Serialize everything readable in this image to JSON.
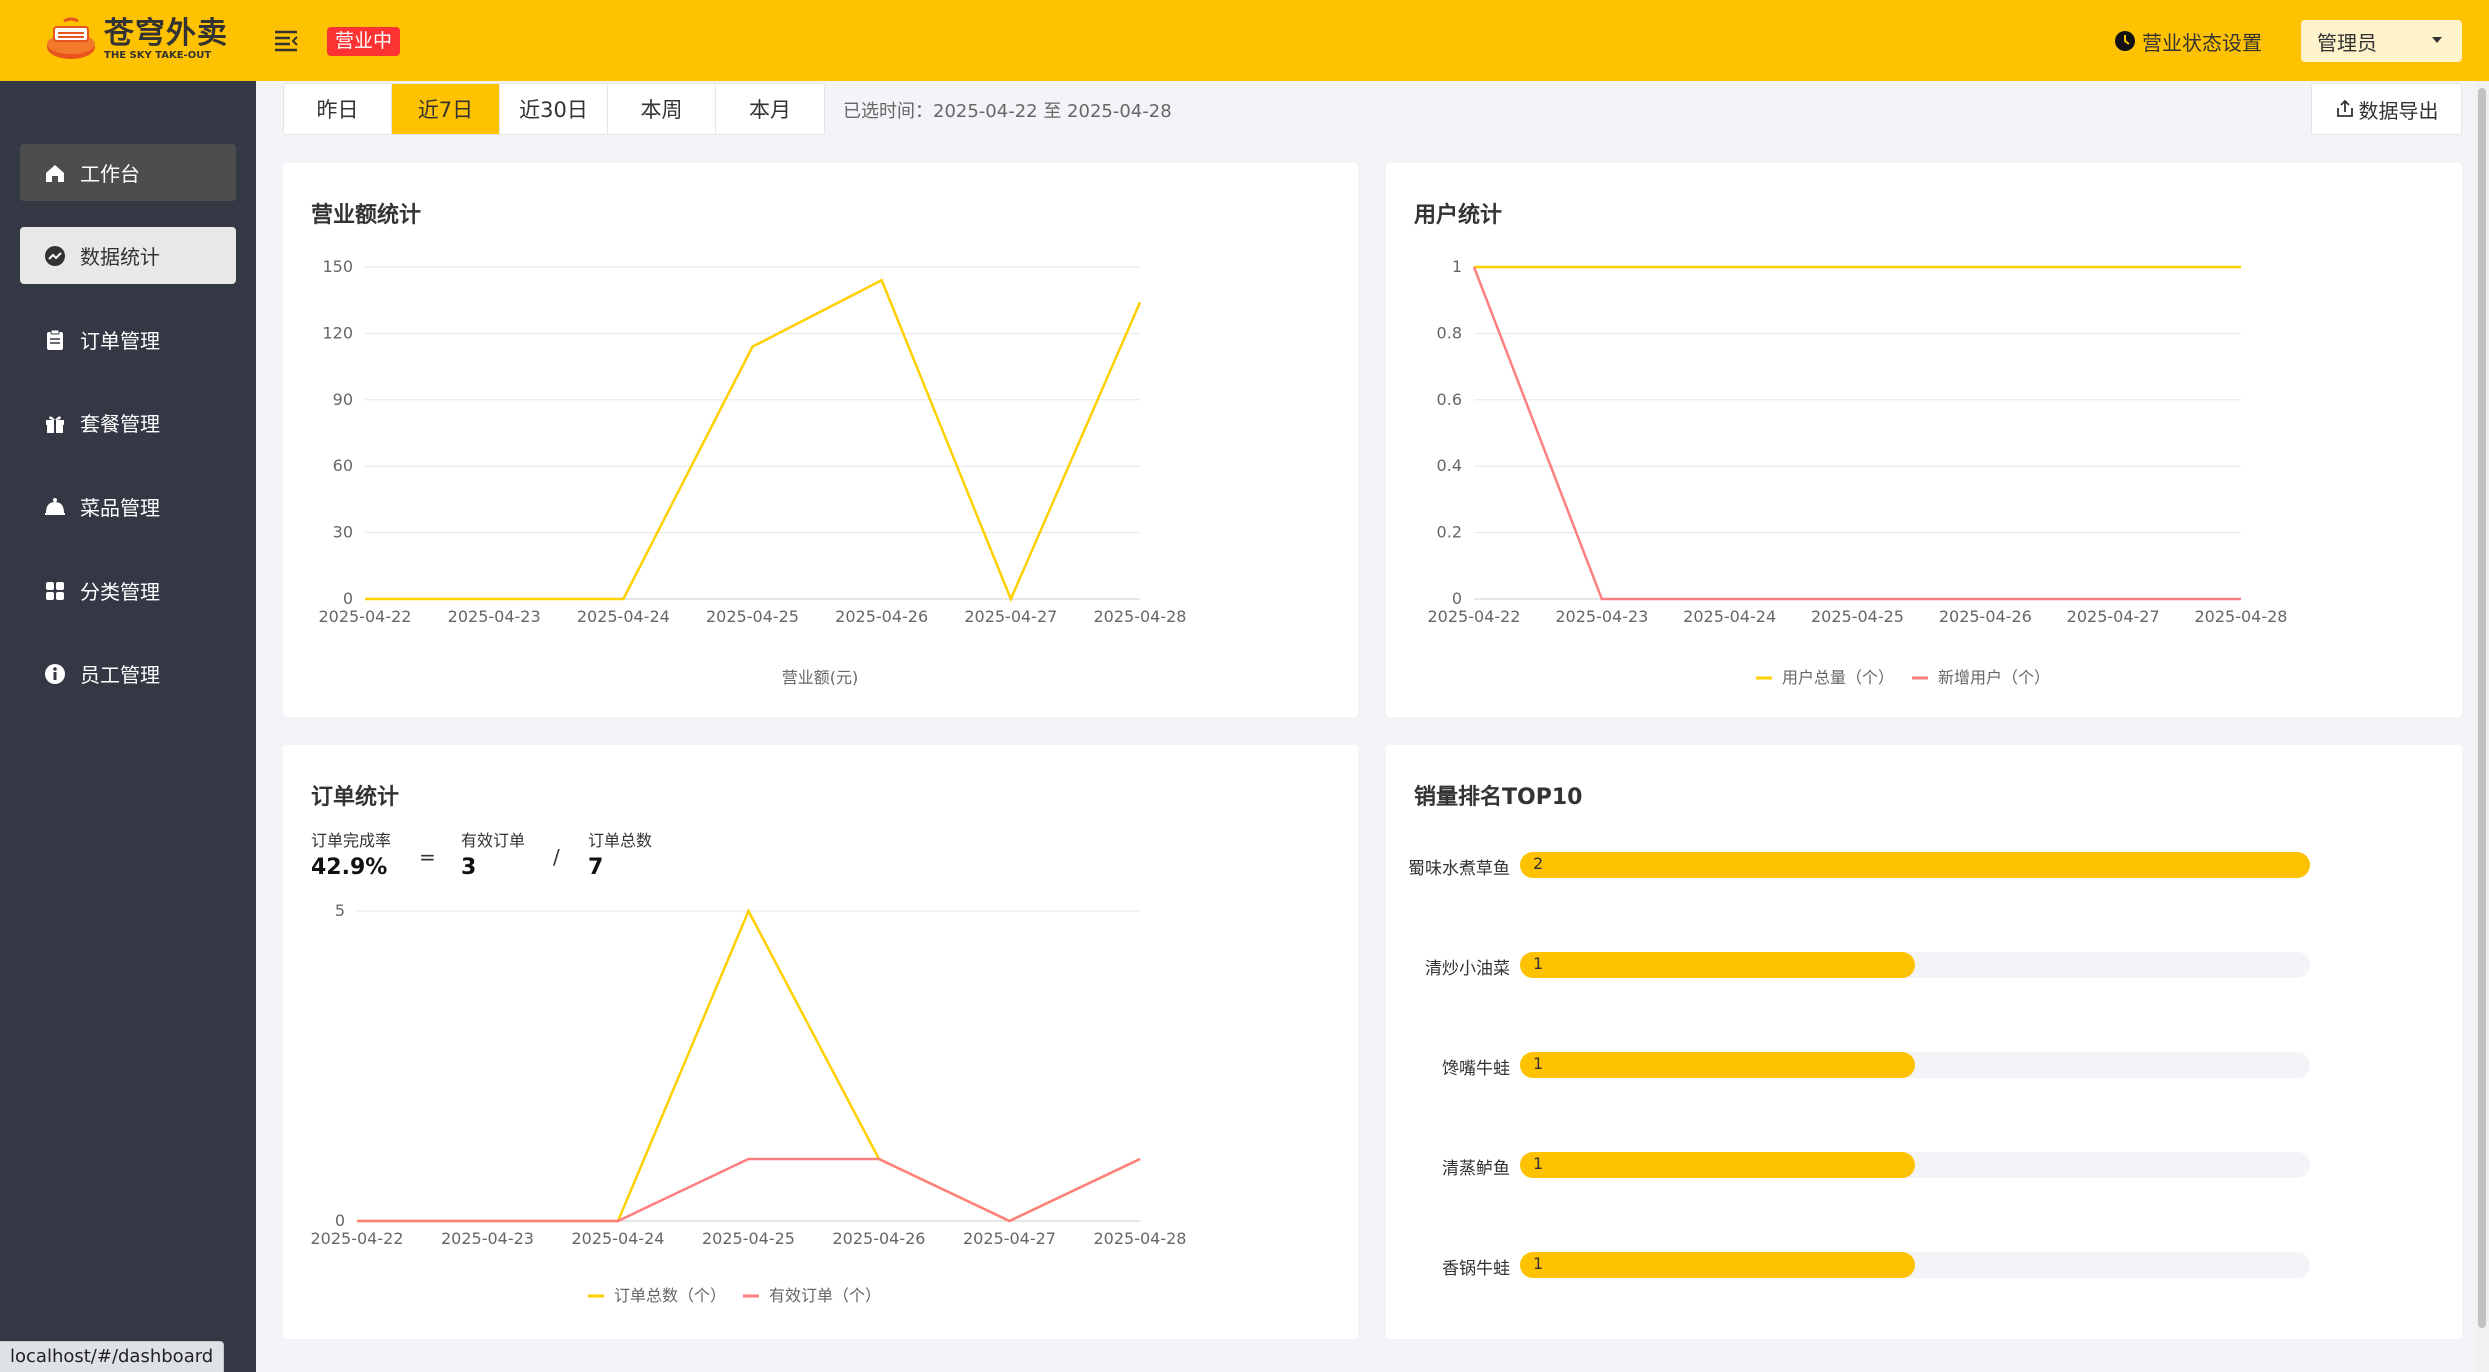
{
  "header": {
    "logo_cn": "苍穹外卖",
    "logo_en": "THE SKY TAKE-OUT",
    "status_badge": "营业中",
    "state_setting": "营业状态设置",
    "user": "管理员",
    "brand_color": "#ffc200"
  },
  "sidebar": {
    "items": [
      {
        "label": "工作台",
        "icon": "home-icon"
      },
      {
        "label": "数据统计",
        "icon": "chart-icon"
      },
      {
        "label": "订单管理",
        "icon": "clipboard-icon"
      },
      {
        "label": "套餐管理",
        "icon": "gift-icon"
      },
      {
        "label": "菜品管理",
        "icon": "dish-icon"
      },
      {
        "label": "分类管理",
        "icon": "grid-icon"
      },
      {
        "label": "员工管理",
        "icon": "info-icon"
      }
    ]
  },
  "tabs": [
    "昨日",
    "近7日",
    "近30日",
    "本周",
    "本月"
  ],
  "selected_tab": "近7日",
  "range_text": "已选时间：2025-04-22 至 2025-04-28",
  "export_label": "数据导出",
  "status_url": "localhost/#/dashboard",
  "turnover": {
    "title": "营业额统计",
    "legend": "营业额(元)"
  },
  "users": {
    "title": "用户统计",
    "legend_total": "用户总量（个）",
    "legend_new": "新增用户（个）"
  },
  "orders": {
    "title": "订单统计",
    "completion_label": "订单完成率",
    "completion_value": "42.9%",
    "equals": "=",
    "valid_label": "有效订单",
    "valid_value": "3",
    "slash": "/",
    "total_label": "订单总数",
    "total_value": "7",
    "legend_total": "订单总数（个）",
    "legend_valid": "有效订单（个）"
  },
  "top10": {
    "title": "销量排名TOP10",
    "max": 2,
    "items": [
      {
        "name": "蜀味水煮草鱼",
        "value": "2"
      },
      {
        "name": "清炒小油菜",
        "value": "1"
      },
      {
        "name": "馋嘴牛蛙",
        "value": "1"
      },
      {
        "name": "清蒸鲈鱼",
        "value": "1"
      },
      {
        "name": "香锅牛蛙",
        "value": "1"
      }
    ]
  },
  "chart_data": [
    {
      "type": "line",
      "title": "营业额统计",
      "categories": [
        "2025-04-22",
        "2025-04-23",
        "2025-04-24",
        "2025-04-25",
        "2025-04-26",
        "2025-04-27",
        "2025-04-28"
      ],
      "series": [
        {
          "name": "营业额(元)",
          "values": [
            0,
            0,
            0,
            114,
            144,
            0,
            134
          ],
          "color": "#ffd000"
        }
      ],
      "yticks": [
        "0",
        "30",
        "60",
        "90",
        "120",
        "150"
      ],
      "ylim": [
        0,
        150
      ]
    },
    {
      "type": "line",
      "title": "用户统计",
      "categories": [
        "2025-04-22",
        "2025-04-23",
        "2025-04-24",
        "2025-04-25",
        "2025-04-26",
        "2025-04-27",
        "2025-04-28"
      ],
      "series": [
        {
          "name": "用户总量（个）",
          "values": [
            1,
            1,
            1,
            1,
            1,
            1,
            1
          ],
          "color": "#ffd000"
        },
        {
          "name": "新增用户（个）",
          "values": [
            1,
            0,
            0,
            0,
            0,
            0,
            0
          ],
          "color": "#fd7f7f"
        }
      ],
      "yticks": [
        "0",
        "0.2",
        "0.4",
        "0.6",
        "0.8",
        "1"
      ],
      "ylim": [
        0,
        1
      ]
    },
    {
      "type": "line",
      "title": "订单统计",
      "categories": [
        "2025-04-22",
        "2025-04-23",
        "2025-04-24",
        "2025-04-25",
        "2025-04-26",
        "2025-04-27",
        "2025-04-28"
      ],
      "series": [
        {
          "name": "订单总数（个）",
          "values": [
            0,
            0,
            0,
            5,
            1,
            0,
            1
          ],
          "color": "#ffd000"
        },
        {
          "name": "有效订单（个）",
          "values": [
            0,
            0,
            0,
            1,
            1,
            0,
            1
          ],
          "color": "#fd7f7f"
        }
      ],
      "yticks": [
        "0",
        "5"
      ],
      "ylim": [
        0,
        5
      ]
    },
    {
      "type": "bar",
      "title": "销量排名TOP10",
      "categories": [
        "蜀味水煮草鱼",
        "清炒小油菜",
        "馋嘴牛蛙",
        "清蒸鲈鱼",
        "香锅牛蛙"
      ],
      "values": [
        2,
        1,
        1,
        1,
        1
      ]
    }
  ]
}
